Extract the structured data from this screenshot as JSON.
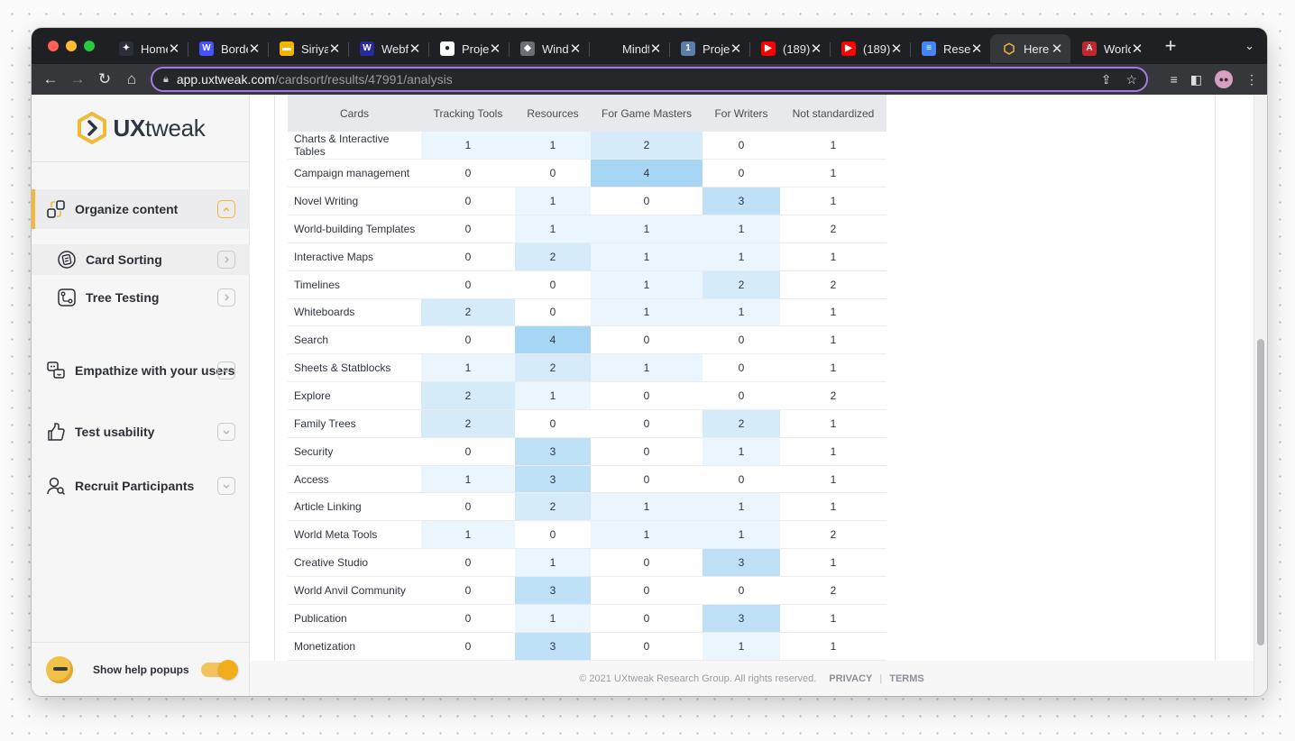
{
  "browser": {
    "tabs": [
      {
        "title": "Home",
        "favicon": "notion-icon",
        "color": "#2b2f3a",
        "glyph": "✦"
      },
      {
        "title": "Borde",
        "favicon": "webflow-w-icon",
        "color": "#4353ff",
        "glyph": "W"
      },
      {
        "title": "Siriya",
        "favicon": "slides-icon",
        "color": "#f4b400",
        "glyph": "▬"
      },
      {
        "title": "Webf",
        "favicon": "webflow-w-icon",
        "color": "#2b2a9c",
        "glyph": "W"
      },
      {
        "title": "Proje",
        "favicon": "github-icon",
        "color": "#ffffff",
        "glyph": "●"
      },
      {
        "title": "Wind",
        "favicon": "cube-icon",
        "color": "#6b6e76",
        "glyph": "◆"
      },
      {
        "title": "Mindf",
        "favicon": "blank-icon",
        "color": "#1f2023",
        "glyph": ""
      },
      {
        "title": "Proje",
        "favicon": "project-1-icon",
        "color": "#5b7fa8",
        "glyph": "1"
      },
      {
        "title": "(189)",
        "favicon": "youtube-icon",
        "color": "#ff0000",
        "glyph": "▶"
      },
      {
        "title": "(189)",
        "favicon": "youtube-icon",
        "color": "#ff0000",
        "glyph": "▶"
      },
      {
        "title": "Resea",
        "favicon": "docs-icon",
        "color": "#4285f4",
        "glyph": "≡"
      },
      {
        "title": "Here",
        "favicon": "uxtweak-hex-icon",
        "color": "#f2b936",
        "glyph": "⬡",
        "active": true
      },
      {
        "title": "Worlc",
        "favicon": "worldanvil-icon",
        "color": "#c0282d",
        "glyph": "A"
      }
    ],
    "url_domain": "app.uxtweak.com",
    "url_path": "/cardsort/results/47991/analysis"
  },
  "sidebar": {
    "logo_text_bold": "UX",
    "logo_text": "tweak",
    "sections": [
      {
        "label": "Organize content",
        "icon": "organize-icon",
        "expanded": true
      },
      {
        "label": "Empathize with your users",
        "icon": "empathize-icon",
        "expanded": false
      },
      {
        "label": "Test usability",
        "icon": "test-usability-icon",
        "expanded": false
      },
      {
        "label": "Recruit Participants",
        "icon": "recruit-icon",
        "expanded": false
      }
    ],
    "sub_items": [
      {
        "label": "Card Sorting",
        "icon": "card-sorting-icon",
        "selected": true
      },
      {
        "label": "Tree Testing",
        "icon": "tree-testing-icon",
        "selected": false
      }
    ],
    "help_label": "Show help popups",
    "help_enabled": true
  },
  "matrix": {
    "headers": [
      "Cards",
      "Tracking Tools",
      "Resources",
      "For Game Masters",
      "For Writers",
      "Not standardized"
    ],
    "rows": [
      {
        "card": "Charts & Interactive Tables",
        "values": [
          1,
          1,
          2,
          0,
          1
        ]
      },
      {
        "card": "Campaign management",
        "values": [
          0,
          0,
          4,
          0,
          1
        ]
      },
      {
        "card": "Novel Writing",
        "values": [
          0,
          1,
          0,
          3,
          1
        ]
      },
      {
        "card": "World-building Templates",
        "values": [
          0,
          1,
          1,
          1,
          2
        ]
      },
      {
        "card": "Interactive Maps",
        "values": [
          0,
          2,
          1,
          1,
          1
        ]
      },
      {
        "card": "Timelines",
        "values": [
          0,
          0,
          1,
          2,
          2
        ]
      },
      {
        "card": "Whiteboards",
        "values": [
          2,
          0,
          1,
          1,
          1
        ]
      },
      {
        "card": "Search",
        "values": [
          0,
          4,
          0,
          0,
          1
        ]
      },
      {
        "card": "Sheets & Statblocks",
        "values": [
          1,
          2,
          1,
          0,
          1
        ]
      },
      {
        "card": "Explore",
        "values": [
          2,
          1,
          0,
          0,
          2
        ]
      },
      {
        "card": "Family Trees",
        "values": [
          2,
          0,
          0,
          2,
          1
        ]
      },
      {
        "card": "Security",
        "values": [
          0,
          3,
          0,
          1,
          1
        ]
      },
      {
        "card": "Access",
        "values": [
          1,
          3,
          0,
          0,
          1
        ]
      },
      {
        "card": "Article Linking",
        "values": [
          0,
          2,
          1,
          1,
          1
        ]
      },
      {
        "card": "World Meta Tools",
        "values": [
          1,
          0,
          1,
          1,
          2
        ]
      },
      {
        "card": "Creative Studio",
        "values": [
          0,
          1,
          0,
          3,
          1
        ]
      },
      {
        "card": "World Anvil Community",
        "values": [
          0,
          3,
          0,
          0,
          2
        ]
      },
      {
        "card": "Publication",
        "values": [
          0,
          1,
          0,
          3,
          1
        ]
      },
      {
        "card": "Monetization",
        "values": [
          0,
          3,
          0,
          1,
          1
        ]
      }
    ]
  },
  "footer": {
    "copyright": "© 2021 UXtweak Research Group. All rights reserved.",
    "privacy": "PRIVACY",
    "separator": "|",
    "terms": "TERMS"
  },
  "colors": {
    "accent": "#f2b936",
    "heat_max": "#a7d6f5"
  }
}
